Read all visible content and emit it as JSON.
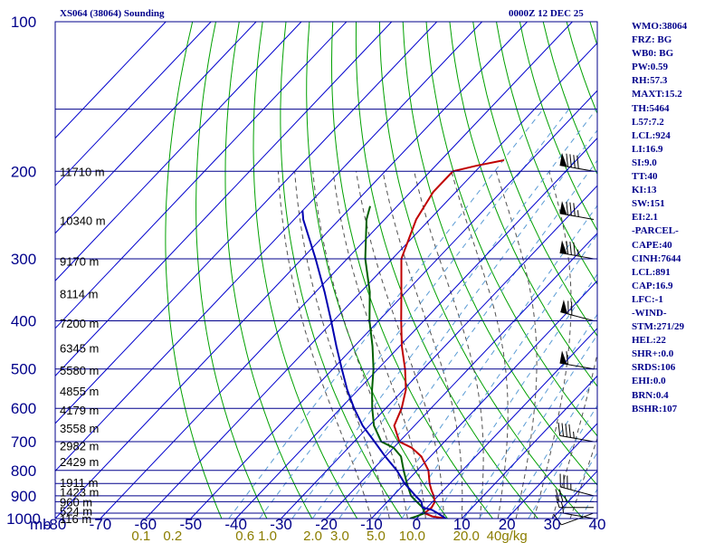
{
  "header": {
    "station": "XS064 (38064) Sounding",
    "datetime": "0000Z 12 DEC 25"
  },
  "stats": [
    "WMO:38064",
    "FRZ: BG",
    "WB0: BG",
    "PW:0.59",
    "RH:57.3",
    "MAXT:15.2",
    "TH:5464",
    "L57:7.2",
    "LCL:924",
    "LI:16.9",
    "SI:9.0",
    "TT:40",
    "KI:13",
    "SW:151",
    "EI:2.1",
    "-PARCEL-",
    "CAPE:40",
    "CINH:7644",
    "LCL:891",
    "CAP:16.9",
    "LFC:-1",
    "-WIND-",
    "STM:271/29",
    "HEL:22",
    "SHR+:0.0",
    "SRDS:106",
    "EHI:0.0",
    "BRN:0.4",
    "BSHR:107"
  ],
  "colors": {
    "frame": "#00008b",
    "isotherm": "#0000cd",
    "dry_adiabat": "#00a000",
    "moist_adiabat": "#505050",
    "mixing_ratio": "#5a9bd4",
    "temperature": "#c00000",
    "dewpoint": "#006000",
    "parcel": "#0000b0",
    "wind": "#000000",
    "text": "#000000",
    "mixing_label": "#8b7d00"
  },
  "chart_data": {
    "type": "line",
    "title": "XS064 (38064) Sounding",
    "subtitle": "0000Z 12 DEC 25",
    "x_unit_label": "mb",
    "xlim": [
      -80,
      40
    ],
    "ylim_pressure": [
      1000,
      100
    ],
    "x_ticks": [
      -80,
      -70,
      -60,
      -50,
      -40,
      -30,
      -20,
      -10,
      0,
      10,
      20,
      30,
      40
    ],
    "x_tick_labels": [
      "-80",
      "-70",
      "-60",
      "-50",
      "-40",
      "-30",
      "-20",
      "-10",
      "0",
      "10",
      "20",
      "30",
      "40"
    ],
    "pressure_levels": [
      1000,
      900,
      800,
      700,
      600,
      500,
      400,
      300,
      200,
      100
    ],
    "pressure_labels": [
      "1000",
      "900",
      "800",
      "700",
      "600",
      "500",
      "400",
      "300",
      "200",
      "100"
    ],
    "extra_gridlines_mb": [
      975,
      925,
      850,
      150
    ],
    "height_labels": [
      {
        "p": 1000,
        "text": "116 m"
      },
      {
        "p": 965,
        "text": "524 m"
      },
      {
        "p": 925,
        "text": "960 m"
      },
      {
        "p": 883,
        "text": "1423 m"
      },
      {
        "p": 845,
        "text": "1911 m"
      },
      {
        "p": 767,
        "text": "2429 m"
      },
      {
        "p": 714,
        "text": "2982 m"
      },
      {
        "p": 657,
        "text": "3558 m"
      },
      {
        "p": 605,
        "text": "4179 m"
      },
      {
        "p": 553,
        "text": "4855 m"
      },
      {
        "p": 503,
        "text": "5580 m"
      },
      {
        "p": 454,
        "text": "6345 m"
      },
      {
        "p": 404,
        "text": "7200 m"
      },
      {
        "p": 353,
        "text": "8114 m"
      },
      {
        "p": 303,
        "text": "9170 m"
      },
      {
        "p": 251,
        "text": "10340 m"
      },
      {
        "p": 200,
        "text": "11710 m"
      }
    ],
    "mixing_ratio_labels": [
      "0.1",
      "0.2",
      "0.6",
      "1.0",
      "2.0",
      "3.0",
      "5.0",
      "10.0",
      "20.0",
      "40g/kg"
    ],
    "mixing_ratio_label_x": [
      -61,
      -54,
      -38,
      -33,
      -23,
      -17,
      -9,
      -1,
      11,
      20
    ],
    "series": [
      {
        "name": "Temperature",
        "color_key": "temperature",
        "points": [
          [
            1000,
            6.5
          ],
          [
            990,
            3.0
          ],
          [
            975,
            0.6
          ],
          [
            950,
            1.0
          ],
          [
            925,
            0.5
          ],
          [
            900,
            -1.0
          ],
          [
            875,
            -2.8
          ],
          [
            850,
            -4.5
          ],
          [
            800,
            -7.5
          ],
          [
            750,
            -12.0
          ],
          [
            720,
            -16.0
          ],
          [
            700,
            -20.0
          ],
          [
            650,
            -24.5
          ],
          [
            600,
            -26.5
          ],
          [
            550,
            -29.5
          ],
          [
            500,
            -34.0
          ],
          [
            450,
            -39.5
          ],
          [
            400,
            -45.0
          ],
          [
            350,
            -51.0
          ],
          [
            300,
            -58.0
          ],
          [
            250,
            -63.0
          ],
          [
            220,
            -65.0
          ],
          [
            200,
            -65.0
          ],
          [
            195,
            -61.0
          ],
          [
            190,
            -56.0
          ]
        ]
      },
      {
        "name": "Dewpoint",
        "color_key": "dewpoint",
        "points": [
          [
            1000,
            -1.5
          ],
          [
            990,
            -0.5
          ],
          [
            975,
            0.6
          ],
          [
            950,
            -1.0
          ],
          [
            925,
            -3.5
          ],
          [
            900,
            -6.0
          ],
          [
            850,
            -9.5
          ],
          [
            800,
            -13.0
          ],
          [
            750,
            -16.5
          ],
          [
            720,
            -20.0
          ],
          [
            700,
            -24.0
          ],
          [
            650,
            -29.0
          ],
          [
            600,
            -33.0
          ],
          [
            550,
            -37.0
          ],
          [
            500,
            -41.0
          ],
          [
            450,
            -46.0
          ],
          [
            400,
            -52.0
          ],
          [
            350,
            -58.0
          ],
          [
            300,
            -66.0
          ],
          [
            250,
            -74.0
          ],
          [
            235,
            -76.0
          ]
        ]
      },
      {
        "name": "Parcel",
        "color_key": "parcel",
        "points": [
          [
            1000,
            6.5
          ],
          [
            975,
            3.5
          ],
          [
            960,
            1.5
          ],
          [
            950,
            -1.0
          ],
          [
            925,
            -2.5
          ],
          [
            900,
            -5.0
          ],
          [
            850,
            -10.0
          ],
          [
            800,
            -14.5
          ],
          [
            750,
            -20.0
          ],
          [
            700,
            -25.5
          ],
          [
            650,
            -31.5
          ],
          [
            600,
            -37.0
          ],
          [
            550,
            -42.5
          ],
          [
            500,
            -48.0
          ],
          [
            450,
            -54.0
          ],
          [
            400,
            -60.5
          ],
          [
            350,
            -68.0
          ],
          [
            300,
            -77.0
          ],
          [
            250,
            -88.0
          ],
          [
            240,
            -90.0
          ]
        ]
      }
    ],
    "wind_barbs": [
      {
        "p": 1000,
        "dir": 280,
        "speed": 5
      },
      {
        "p": 975,
        "dir": 250,
        "speed": 10
      },
      {
        "p": 950,
        "dir": 270,
        "speed": 15
      },
      {
        "p": 925,
        "dir": 270,
        "speed": 25
      },
      {
        "p": 900,
        "dir": 285,
        "speed": 35
      },
      {
        "p": 700,
        "dir": 280,
        "speed": 45
      },
      {
        "p": 500,
        "dir": 280,
        "speed": 60
      },
      {
        "p": 400,
        "dir": 285,
        "speed": 70
      },
      {
        "p": 300,
        "dir": 280,
        "speed": 85
      },
      {
        "p": 250,
        "dir": 280,
        "speed": 85
      },
      {
        "p": 200,
        "dir": 280,
        "speed": 90
      }
    ]
  }
}
